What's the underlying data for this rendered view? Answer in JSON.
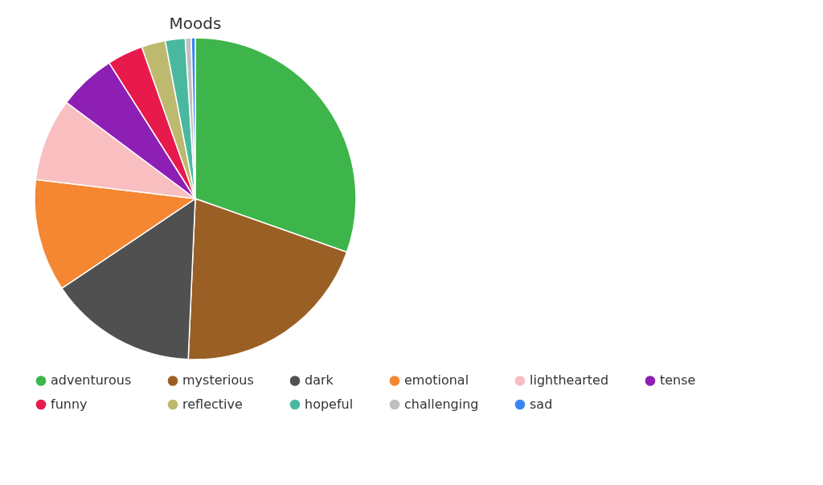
{
  "chart_data": {
    "type": "pie",
    "title": "Moods",
    "categories": [
      "adventurous",
      "mysterious",
      "dark",
      "emotional",
      "lighthearted",
      "tense",
      "funny",
      "reflective",
      "hopeful",
      "challenging",
      "sad"
    ],
    "values": [
      30.4,
      20.3,
      14.9,
      11.3,
      8.3,
      5.8,
      3.6,
      2.4,
      2.0,
      0.6,
      0.4
    ],
    "colors": [
      "#3db54a",
      "#9a5f25",
      "#505050",
      "#f58632",
      "#f9bfc0",
      "#8e1fb5",
      "#e8194b",
      "#bdb96f",
      "#4ab89f",
      "#c0c0c0",
      "#3a86f5"
    ],
    "legend": "bottom"
  }
}
